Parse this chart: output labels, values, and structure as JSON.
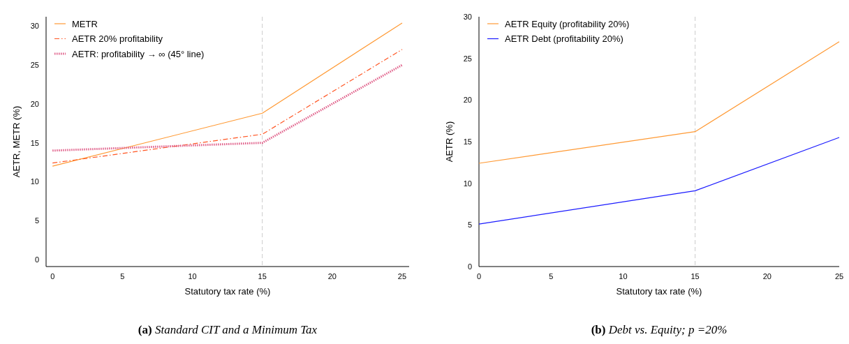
{
  "chart_data": [
    {
      "type": "line",
      "title": "(a) Standard CIT and a Minimum Tax",
      "xlabel": "Statutory tax rate (%)",
      "ylabel": "AETR, METR (%)",
      "x": [
        0,
        15,
        25
      ],
      "xlim": [
        -0.46,
        25.5
      ],
      "ylim": [
        -0.9,
        31.2
      ],
      "xticks": [
        0,
        5,
        10,
        15,
        20,
        25
      ],
      "yticks": [
        0,
        5,
        10,
        15,
        20,
        25,
        30
      ],
      "grid": false,
      "legend": "top left",
      "marker": "none",
      "series": [
        {
          "name": "METR",
          "color": "#ff9933",
          "values": [
            12.0,
            18.8,
            30.4
          ],
          "line_style": "solid"
        },
        {
          "name": "AETR 20% profitability",
          "color": "#ff5522",
          "values": [
            12.4,
            16.1,
            27.0
          ],
          "line_style": "dashed"
        },
        {
          "name": "AETR: profitability → ∞ (45° line)",
          "color": "#e0608a",
          "values": [
            14.0,
            15.0,
            25.0
          ],
          "line_style": "dotted"
        }
      ],
      "ref_lines": [
        {
          "axis": "x",
          "value": 15,
          "color": "#cccccc",
          "line_style": "dashed"
        }
      ]
    },
    {
      "type": "line",
      "title": "(b) Debt vs. Equity; p =20%",
      "xlabel": "Statutory tax rate (%)",
      "ylabel": "AETR (%)",
      "x": [
        0,
        15,
        25
      ],
      "xlim": [
        0,
        25
      ],
      "ylim": [
        0,
        30
      ],
      "xticks": [
        0,
        5,
        10,
        15,
        20,
        25
      ],
      "yticks": [
        0,
        5,
        10,
        15,
        20,
        25,
        30
      ],
      "grid": false,
      "legend": "top left",
      "marker": "none",
      "series": [
        {
          "name": "AETR Equity (profitability 20%)",
          "color": "#ff9933",
          "values": [
            12.4,
            16.2,
            27.0
          ],
          "line_style": "solid"
        },
        {
          "name": "AETR Debt (profitability 20%)",
          "color": "#1a1aff",
          "values": [
            5.1,
            9.1,
            15.5
          ],
          "line_style": "solid"
        }
      ],
      "ref_lines": [
        {
          "axis": "x",
          "value": 15,
          "color": "#cccccc",
          "line_style": "dashed"
        }
      ]
    }
  ]
}
